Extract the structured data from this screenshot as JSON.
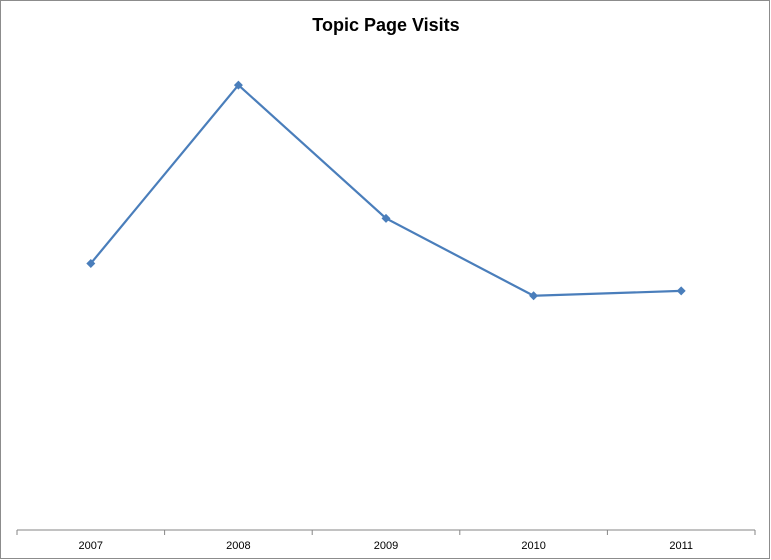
{
  "chart_data": {
    "type": "line",
    "title": "Topic Page Visits",
    "categories": [
      "2007",
      "2008",
      "2009",
      "2010",
      "2011"
    ],
    "series": [
      {
        "name": "Topic Page Visits",
        "color": "#4a7ebb",
        "values": [
          272,
          454,
          318,
          239,
          244
        ]
      }
    ],
    "ylim": [
      0,
      500
    ]
  }
}
